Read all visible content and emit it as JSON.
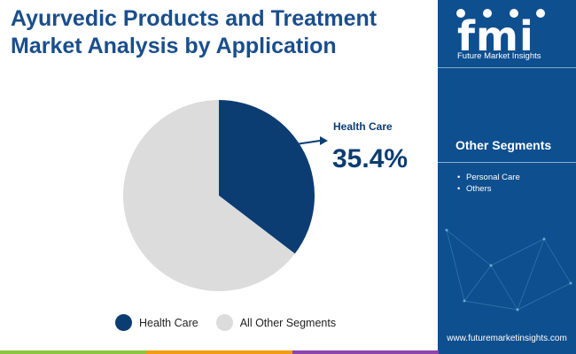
{
  "title": "Ayurvedic Products and Treatment Market Analysis by Application",
  "callout": {
    "label": "Health Care",
    "value": "35.4%"
  },
  "legend": [
    {
      "label": "Health Care",
      "color": "#0b3d73"
    },
    {
      "label": "All Other Segments",
      "color": "#dcdcdc"
    }
  ],
  "sidebar": {
    "logo_text": "fmi",
    "logo_subtitle": "Future Market Insights",
    "segments_title": "Other Segments",
    "segments": [
      "Personal Care",
      "Others"
    ],
    "website": "www.futuremarketinsights.com"
  },
  "colors": {
    "highlight": "#0b3d73",
    "other": "#dcdcdc",
    "sidebar_bg": "#0e4f8f",
    "title": "#1a4e8c"
  },
  "chart_data": {
    "type": "pie",
    "title": "Ayurvedic Products and Treatment Market Analysis by Application",
    "slices": [
      {
        "label": "Health Care",
        "value": 35.4
      },
      {
        "label": "All Other Segments",
        "value": 64.6
      }
    ]
  }
}
